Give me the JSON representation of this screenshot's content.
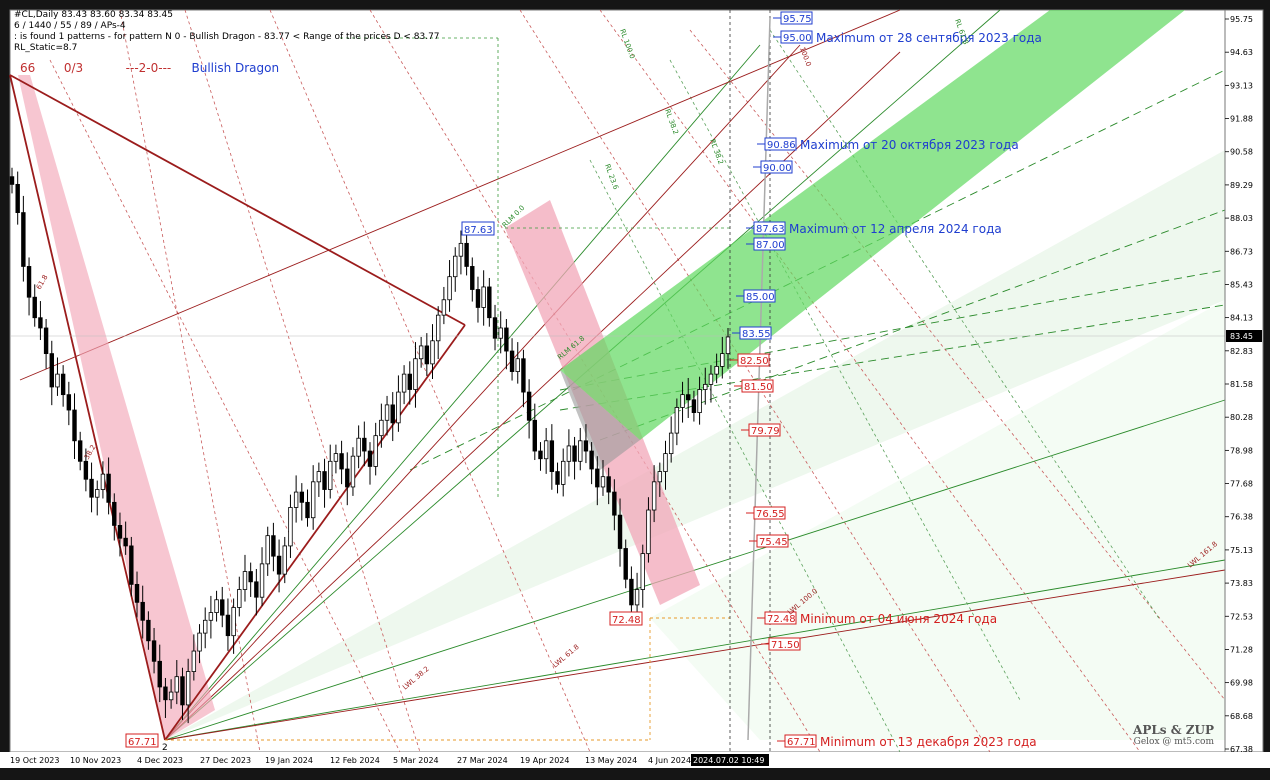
{
  "info": {
    "symbol_line": "#CL,Daily  83.43 83.60 83.34 83.45",
    "params_line": "6 / 1440 / 55 / 89 / APs-4",
    "found_line": ": is found 1 patterns  -  for pattern N 0 - Bullish Dragon - 83.77 < Range of the prices D < 83.77",
    "static_line": "RL_Static=8.7"
  },
  "pattern_row": {
    "n1": "66",
    "n2": "0/3",
    "n3": "---2-0---",
    "name": "Bullish Dragon"
  },
  "watermark": {
    "line1": "APLs & ZUP",
    "line2": "Gelox @ mt5.com"
  },
  "chart_data": {
    "type": "candlestick",
    "symbol": "#CL",
    "timeframe": "Daily",
    "ohlc_last": [
      83.43,
      83.6,
      83.34,
      83.45
    ],
    "current_price": "83.45",
    "ylim": [
      67.38,
      95.85
    ],
    "y_ticks": [
      "95.75",
      "94.63",
      "93.13",
      "91.88",
      "90.58",
      "89.29",
      "88.03",
      "86.73",
      "85.43",
      "84.13",
      "82.83",
      "81.58",
      "80.28",
      "78.98",
      "77.68",
      "76.38",
      "75.13",
      "73.83",
      "72.53",
      "71.28",
      "69.98",
      "68.68",
      "67.38"
    ],
    "x_ticks": [
      "19 Oct 2023",
      "10 Nov 2023",
      "4 Dec 2023",
      "27 Dec 2023",
      "19 Jan 2024",
      "12 Feb 2024",
      "5 Mar 2024",
      "27 Mar 2024",
      "19 Apr 2024",
      "13 May 2024",
      "4 Jun 2024",
      "2024.07.02 10:49"
    ],
    "close_series": [
      89.4,
      88.3,
      86.2,
      85.0,
      84.2,
      83.8,
      82.8,
      81.5,
      82.0,
      81.2,
      80.6,
      79.4,
      78.6,
      77.9,
      77.2,
      77.5,
      78.1,
      77.0,
      76.1,
      75.6,
      75.3,
      73.8,
      73.1,
      72.4,
      71.6,
      70.8,
      69.8,
      69.3,
      69.6,
      70.2,
      69.1,
      70.4,
      71.2,
      71.9,
      72.4,
      72.7,
      73.2,
      72.6,
      71.8,
      72.9,
      73.6,
      74.3,
      73.9,
      73.3,
      74.6,
      75.7,
      74.9,
      74.2,
      75.3,
      76.8,
      77.4,
      77.0,
      76.4,
      77.8,
      78.2,
      77.5,
      78.6,
      78.9,
      78.3,
      77.6,
      78.8,
      79.5,
      79.0,
      78.4,
      79.6,
      80.2,
      80.8,
      80.1,
      81.3,
      82.0,
      81.4,
      82.6,
      83.1,
      82.4,
      83.3,
      84.3,
      84.9,
      85.8,
      86.6,
      87.1,
      86.2,
      85.3,
      84.6,
      85.4,
      84.2,
      83.4,
      83.8,
      82.9,
      82.1,
      82.6,
      81.3,
      80.2,
      79.0,
      78.7,
      79.4,
      78.2,
      77.7,
      78.6,
      79.2,
      78.6,
      79.4,
      79.0,
      78.3,
      77.6,
      78.0,
      77.4,
      76.5,
      75.2,
      74.0,
      73.0,
      73.6,
      75.0,
      76.7,
      77.8,
      78.2,
      78.9,
      79.7,
      80.7,
      81.2,
      81.0,
      80.5,
      81.4,
      81.6,
      82.0,
      82.3,
      82.8,
      83.45
    ],
    "right_labels": [
      {
        "value": "95.75",
        "color": "#1f3ecf",
        "note": ""
      },
      {
        "value": "95.00",
        "color": "#1f3ecf",
        "note": "Maximum от 28 сентября 2023 года"
      },
      {
        "value": "90.86",
        "color": "#1f3ecf",
        "note": "Maximum от 20 октября 2023 года"
      },
      {
        "value": "90.00",
        "color": "#1f3ecf",
        "note": ""
      },
      {
        "value": "87.63",
        "color": "#1f3ecf",
        "note": "Maximum от 12 апреля 2024 года"
      },
      {
        "value": "87.00",
        "color": "#1f3ecf",
        "note": ""
      },
      {
        "value": "85.00",
        "color": "#1f3ecf",
        "note": ""
      },
      {
        "value": "83.55",
        "color": "#1f3ecf",
        "note": ""
      },
      {
        "value": "82.50",
        "color": "#d42020",
        "note": ""
      },
      {
        "value": "81.50",
        "color": "#d42020",
        "note": ""
      },
      {
        "value": "79.79",
        "color": "#d42020",
        "note": ""
      },
      {
        "value": "76.55",
        "color": "#d42020",
        "note": ""
      },
      {
        "value": "75.45",
        "color": "#d42020",
        "note": ""
      },
      {
        "value": "72.48",
        "color": "#d42020",
        "note": "Minimum от 04 июня 2024 года"
      },
      {
        "value": "71.50",
        "color": "#d42020",
        "note": ""
      },
      {
        "value": "67.71",
        "color": "#d42020",
        "note": "Minimum от 13 декабря 2023 года"
      }
    ],
    "pivot_labels": [
      {
        "value": "87.63",
        "color": "#1f3ecf"
      },
      {
        "value": "72.48",
        "color": "#d42020"
      },
      {
        "value": "67.71",
        "color": "#d42020"
      }
    ],
    "pivot_number": "2",
    "fib_labels": [
      "LWL 38.2",
      "LWL 61.8",
      "LWL 100.0",
      "LWL 161.8",
      "RLM 0.0",
      "RL 23.6",
      "RL 38.2",
      "RL 100.0",
      "RLM 61.8",
      "RL 38.2",
      "RL 61.8",
      "61.8",
      "38.2",
      "100.0"
    ],
    "colors": {
      "background": "#ffffff",
      "pink_band": "#f2a7b8",
      "green_band": "#5fd85f",
      "uptrend": "#2a8a2a",
      "downtrend": "#8b1a1a",
      "blue_label": "#1f3ecf",
      "red_label": "#d42020"
    }
  }
}
